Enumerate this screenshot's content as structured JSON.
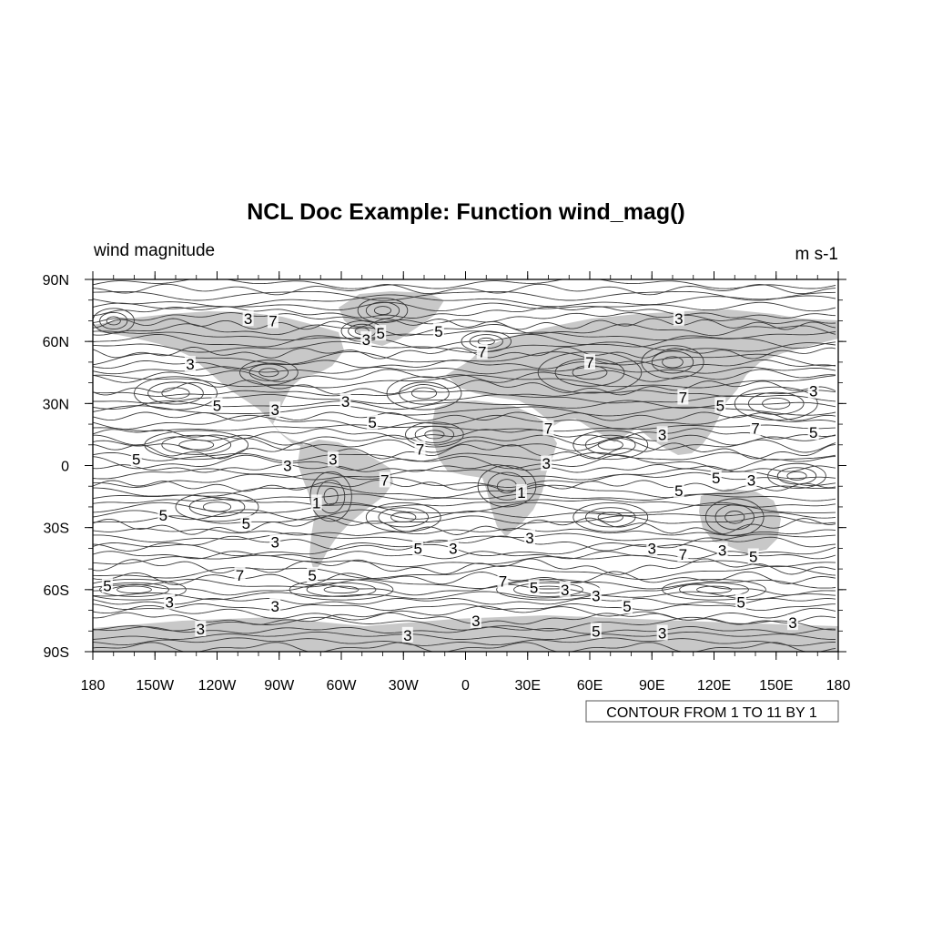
{
  "title": "NCL Doc Example: Function wind_mag()",
  "left_string": "wind magnitude",
  "right_string": "m s-1",
  "info_label": "CONTOUR FROM 1 TO 11 BY 1",
  "colors": {
    "land": "#c8c8c8",
    "contour": "#3a3a3a",
    "frame": "#000000",
    "background": "#ffffff"
  },
  "map": {
    "projection": "cylindrical-equidistant",
    "lon_range": [
      -180,
      180
    ],
    "lat_range": [
      -90,
      90
    ]
  },
  "axes": {
    "x_ticks": [
      {
        "value": -180,
        "label": "180"
      },
      {
        "value": -150,
        "label": "150W"
      },
      {
        "value": -120,
        "label": "120W"
      },
      {
        "value": -90,
        "label": "90W"
      },
      {
        "value": -60,
        "label": "60W"
      },
      {
        "value": -30,
        "label": "30W"
      },
      {
        "value": 0,
        "label": "0"
      },
      {
        "value": 30,
        "label": "30E"
      },
      {
        "value": 60,
        "label": "60E"
      },
      {
        "value": 90,
        "label": "90E"
      },
      {
        "value": 120,
        "label": "120E"
      },
      {
        "value": 150,
        "label": "150E"
      },
      {
        "value": 180,
        "label": "180"
      }
    ],
    "y_ticks": [
      {
        "value": 90,
        "label": "90N"
      },
      {
        "value": 60,
        "label": "60N"
      },
      {
        "value": 30,
        "label": "30N"
      },
      {
        "value": 0,
        "label": "0"
      },
      {
        "value": -30,
        "label": "30S"
      },
      {
        "value": -60,
        "label": "60S"
      },
      {
        "value": -90,
        "label": "90S"
      }
    ]
  },
  "contour_levels": {
    "min": 1,
    "max": 11,
    "step": 1
  },
  "contour_labels": [
    {
      "lon": -105,
      "lat": 71,
      "text": "3"
    },
    {
      "lon": -93,
      "lat": 70,
      "text": "7"
    },
    {
      "lon": -48,
      "lat": 61,
      "text": "3"
    },
    {
      "lon": -41,
      "lat": 64,
      "text": "5"
    },
    {
      "lon": -13,
      "lat": 65,
      "text": "5"
    },
    {
      "lon": 103,
      "lat": 71,
      "text": "3"
    },
    {
      "lon": 8,
      "lat": 55,
      "text": "7"
    },
    {
      "lon": -133,
      "lat": 49,
      "text": "3"
    },
    {
      "lon": 60,
      "lat": 50,
      "text": "7"
    },
    {
      "lon": -120,
      "lat": 29,
      "text": "5"
    },
    {
      "lon": -92,
      "lat": 27,
      "text": "3"
    },
    {
      "lon": -58,
      "lat": 31,
      "text": "3"
    },
    {
      "lon": 105,
      "lat": 33,
      "text": "7"
    },
    {
      "lon": 123,
      "lat": 29,
      "text": "5"
    },
    {
      "lon": 168,
      "lat": 36,
      "text": "3"
    },
    {
      "lon": -45,
      "lat": 21,
      "text": "5"
    },
    {
      "lon": 40,
      "lat": 18,
      "text": "7"
    },
    {
      "lon": 95,
      "lat": 15,
      "text": "3"
    },
    {
      "lon": 140,
      "lat": 18,
      "text": "7"
    },
    {
      "lon": 168,
      "lat": 16,
      "text": "5"
    },
    {
      "lon": -22,
      "lat": 8,
      "text": "7"
    },
    {
      "lon": -159,
      "lat": 3,
      "text": "5"
    },
    {
      "lon": -86,
      "lat": 0,
      "text": "3"
    },
    {
      "lon": -64,
      "lat": 3,
      "text": "3"
    },
    {
      "lon": 39,
      "lat": 1,
      "text": "3"
    },
    {
      "lon": -39,
      "lat": -7,
      "text": "7"
    },
    {
      "lon": 121,
      "lat": -6,
      "text": "5"
    },
    {
      "lon": 138,
      "lat": -7,
      "text": "3"
    },
    {
      "lon": 103,
      "lat": -12,
      "text": "5"
    },
    {
      "lon": -72,
      "lat": -18,
      "text": "1"
    },
    {
      "lon": 27,
      "lat": -13,
      "text": "1"
    },
    {
      "lon": -146,
      "lat": -24,
      "text": "5"
    },
    {
      "lon": -106,
      "lat": -28,
      "text": "5"
    },
    {
      "lon": -92,
      "lat": -37,
      "text": "3"
    },
    {
      "lon": 31,
      "lat": -35,
      "text": "3"
    },
    {
      "lon": -23,
      "lat": -40,
      "text": "5"
    },
    {
      "lon": -6,
      "lat": -40,
      "text": "3"
    },
    {
      "lon": 90,
      "lat": -40,
      "text": "3"
    },
    {
      "lon": 105,
      "lat": -43,
      "text": "7"
    },
    {
      "lon": 124,
      "lat": -41,
      "text": "3"
    },
    {
      "lon": 139,
      "lat": -44,
      "text": "5"
    },
    {
      "lon": -109,
      "lat": -53,
      "text": "7"
    },
    {
      "lon": -74,
      "lat": -53,
      "text": "5"
    },
    {
      "lon": 18,
      "lat": -56,
      "text": "7"
    },
    {
      "lon": -173,
      "lat": -58,
      "text": "5"
    },
    {
      "lon": 33,
      "lat": -59,
      "text": "5"
    },
    {
      "lon": 48,
      "lat": -60,
      "text": "3"
    },
    {
      "lon": 63,
      "lat": -63,
      "text": "3"
    },
    {
      "lon": -143,
      "lat": -66,
      "text": "3"
    },
    {
      "lon": -92,
      "lat": -68,
      "text": "3"
    },
    {
      "lon": 78,
      "lat": -68,
      "text": "5"
    },
    {
      "lon": 133,
      "lat": -66,
      "text": "5"
    },
    {
      "lon": 5,
      "lat": -75,
      "text": "3"
    },
    {
      "lon": 63,
      "lat": -80,
      "text": "5"
    },
    {
      "lon": 95,
      "lat": -81,
      "text": "3"
    },
    {
      "lon": 158,
      "lat": -76,
      "text": "3"
    },
    {
      "lon": -128,
      "lat": -79,
      "text": "3"
    },
    {
      "lon": -28,
      "lat": -82,
      "text": "3"
    }
  ]
}
